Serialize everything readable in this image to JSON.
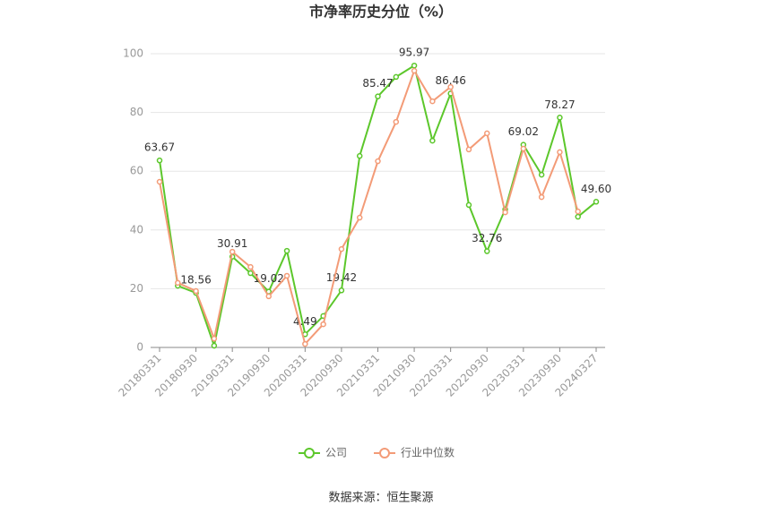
{
  "chart_data": {
    "type": "line",
    "title": "市净率历史分位（%）",
    "source": "数据来源：恒生聚源",
    "categories": [
      "20180331",
      null,
      "20180930",
      null,
      "20190331",
      null,
      "20190930",
      null,
      "20200331",
      null,
      "20200930",
      null,
      "20210331",
      null,
      "20210930",
      null,
      "20220331",
      null,
      "20220930",
      null,
      "20230331",
      null,
      "20230930",
      null,
      "20240327"
    ],
    "series": [
      {
        "name": "公司",
        "color": "#5cc72b",
        "values": [
          63.67,
          21.0,
          18.56,
          0.6,
          30.91,
          25.3,
          19.02,
          32.9,
          4.49,
          10.7,
          19.42,
          65.2,
          85.47,
          92.1,
          95.97,
          70.4,
          86.46,
          48.5,
          32.76,
          47.0,
          69.02,
          58.8,
          78.27,
          44.5,
          49.6
        ],
        "value_labels": [
          "63.67",
          null,
          "18.56",
          null,
          "30.91",
          null,
          "19.02",
          null,
          "4.49",
          null,
          "19.42",
          null,
          "85.47",
          null,
          "95.97",
          null,
          "86.46",
          null,
          "32.76",
          null,
          "69.02",
          null,
          "78.27",
          null,
          "49.60"
        ]
      },
      {
        "name": "行业中位数",
        "color": "#f39b77",
        "values": [
          56.4,
          22.0,
          19.2,
          3.0,
          32.6,
          27.4,
          17.4,
          24.4,
          1.2,
          7.9,
          33.5,
          44.2,
          63.4,
          76.8,
          94.2,
          83.8,
          88.7,
          67.4,
          72.9,
          46.0,
          67.7,
          51.2,
          66.5,
          46.3,
          null
        ]
      }
    ],
    "ylim": [
      0,
      100
    ],
    "yticks": [
      0,
      20,
      40,
      60,
      80,
      100
    ],
    "grid": true,
    "legend": "bottom"
  }
}
